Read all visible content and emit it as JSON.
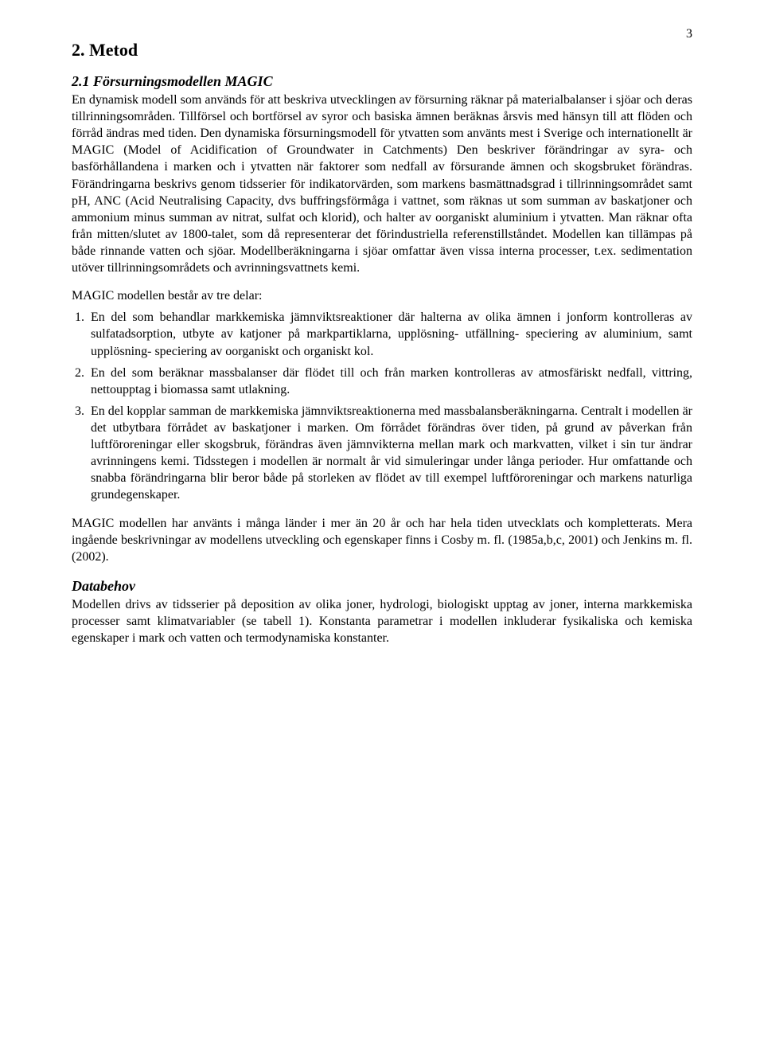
{
  "page_number": "3",
  "section": {
    "title": "2. Metod",
    "sub1_title": "2.1 Försurningsmodellen MAGIC",
    "para1": "En dynamisk modell som används för att beskriva utvecklingen av försurning räknar på materialbalanser i sjöar och deras tillrinningsområden. Tillförsel och bortförsel av syror och basiska ämnen beräknas årsvis med hänsyn till att flöden och förråd ändras med tiden. Den dynamiska försurningsmodell för ytvatten som använts mest i Sverige och internationellt är MAGIC (Model of Acidification of Groundwater in Catchments) Den beskriver förändringar av syra- och basförhållandena i marken och i ytvatten när faktorer som nedfall av försurande ämnen och skogsbruket förändras. Förändringarna beskrivs genom tidsserier för indikatorvärden, som markens basmättnadsgrad i tillrinningsområdet samt pH, ANC (Acid Neutralising Capacity, dvs buffringsförmåga i vattnet, som räknas ut som summan av baskatjoner och ammonium minus summan av nitrat, sulfat och klorid), och halter av oorganiskt aluminium i ytvatten. Man räknar ofta från mitten/slutet av 1800-talet, som då representerar det förindustriella referenstillståndet. Modellen kan tillämpas på både rinnande vatten och sjöar. Modellberäkningarna i sjöar omfattar även vissa interna processer, t.ex. sedimentation utöver tillrinningsområdets och avrinningsvattnets kemi.",
    "list_intro": "MAGIC modellen består av tre delar:",
    "list_items": [
      "En del som behandlar markkemiska jämnviktsreaktioner där halterna av olika ämnen i jonform kontrolleras av sulfatadsorption, utbyte av katjoner på markpartiklarna, upplösning- utfällning- speciering av aluminium, samt upplösning- speciering av oorganiskt och organiskt kol.",
      "En del som beräknar massbalanser där flödet till och från marken kontrolleras av atmosfäriskt nedfall, vittring, nettoupptag i biomassa samt utlakning.",
      "En del kopplar samman de markkemiska jämnviktsreaktionerna med massbalansberäkningarna. Centralt i modellen är det utbytbara förrådet av baskatjoner i marken. Om förrådet förändras över tiden, på grund av påverkan från luftföroreningar eller skogsbruk, förändras även jämnvikterna mellan mark och markvatten, vilket i sin tur ändrar avrinningens kemi. Tidsstegen i modellen är normalt år vid simuleringar under långa perioder. Hur omfattande och snabba förändringarna blir beror både på storleken av flödet av till exempel luftföroreningar och markens naturliga grundegenskaper."
    ],
    "para2": "MAGIC modellen har använts i många länder i mer än 20 år och har hela tiden utvecklats och kompletterats. Mera ingående beskrivningar av modellens utveckling och egenskaper finns i Cosby m. fl. (1985a,b,c, 2001) och Jenkins m. fl. (2002).",
    "sub2_title": "Databehov",
    "para3": "Modellen drivs av tidsserier på deposition av olika joner, hydrologi, biologiskt upptag av joner, interna markkemiska processer samt klimatvariabler (se tabell 1). Konstanta parametrar i modellen inkluderar fysikaliska och kemiska egenskaper i mark och vatten och termodynamiska konstanter."
  }
}
